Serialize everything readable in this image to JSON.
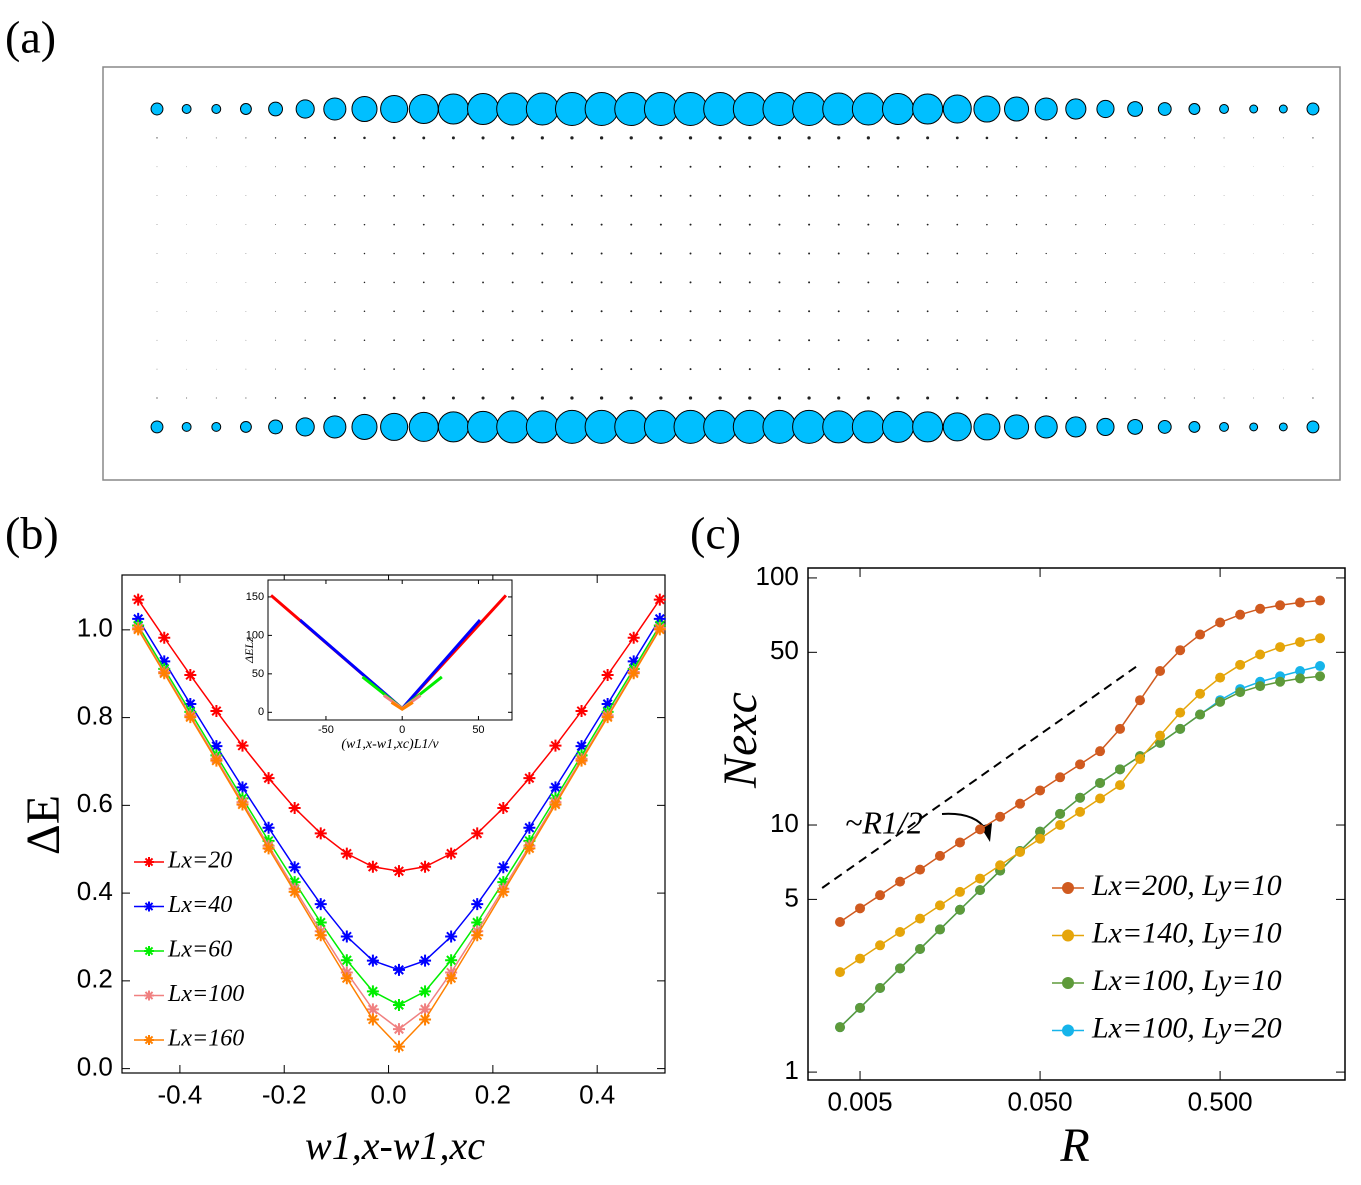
{
  "chart_data": [
    {
      "type": "lattice",
      "label": "(a)",
      "color": "#00bfff",
      "column_weights": [
        0.36,
        0.27,
        0.27,
        0.33,
        0.42,
        0.55,
        0.67,
        0.76,
        0.82,
        0.88,
        0.91,
        0.94,
        0.97,
        0.97,
        1,
        1,
        1,
        1,
        1,
        1,
        1,
        1,
        1,
        0.97,
        0.97,
        0.94,
        0.91,
        0.85,
        0.79,
        0.73,
        0.67,
        0.61,
        0.52,
        0.45,
        0.39,
        0.33,
        0.27,
        0.24,
        0.24,
        0.36
      ],
      "row_weights": [
        1,
        0.1,
        0.06,
        0.06,
        0.06,
        0.06,
        0.06,
        0.06,
        0.06,
        0.06,
        0.1,
        1
      ]
    },
    {
      "type": "line",
      "label": "(b)",
      "xlabel": "w1,x-w1,xc",
      "ylabel": "ΔE",
      "marker": "star",
      "legend": "lower left",
      "x": [
        -0.48,
        -0.43,
        -0.38,
        -0.33,
        -0.28,
        -0.23,
        -0.18,
        -0.13,
        -0.08,
        -0.03,
        0.02,
        0.07,
        0.12,
        0.17,
        0.22,
        0.27,
        0.32,
        0.37,
        0.42,
        0.47,
        0.52
      ],
      "xlim": [
        -0.511,
        0.53
      ],
      "ylim": [
        -0.01,
        1.125
      ],
      "xticks": [
        -0.4,
        -0.2,
        {
          "value": 0,
          "label": "0.0"
        },
        0.2,
        0.4
      ],
      "yticks": [
        {
          "value": 0,
          "label": "0.0"
        },
        0.2,
        0.4,
        0.6,
        0.8,
        {
          "value": 1,
          "label": "1.0"
        }
      ],
      "series": [
        {
          "name": "Lx=20",
          "color": "#ff0000",
          "values": [
            1.069,
            0.982,
            0.897,
            0.815,
            0.736,
            0.662,
            0.594,
            0.536,
            0.49,
            0.46,
            0.45,
            0.46,
            0.49,
            0.536,
            0.594,
            0.662,
            0.736,
            0.815,
            0.897,
            0.982,
            1.069
          ]
        },
        {
          "name": "Lx=40",
          "color": "#0000ff",
          "values": [
            1.025,
            0.928,
            0.831,
            0.735,
            0.641,
            0.549,
            0.459,
            0.375,
            0.301,
            0.246,
            0.225,
            0.246,
            0.301,
            0.375,
            0.459,
            0.549,
            0.641,
            0.735,
            0.831,
            0.928,
            1.025
          ]
        },
        {
          "name": "Lx=60",
          "color": "#00ee00",
          "values": [
            1.01,
            0.911,
            0.813,
            0.714,
            0.616,
            0.519,
            0.425,
            0.333,
            0.247,
            0.176,
            0.145,
            0.176,
            0.247,
            0.333,
            0.425,
            0.519,
            0.616,
            0.714,
            0.813,
            0.911,
            1.01
          ]
        },
        {
          "name": "Lx=100",
          "color": "#f08080",
          "values": [
            1.004,
            0.904,
            0.805,
            0.706,
            0.607,
            0.508,
            0.41,
            0.313,
            0.219,
            0.135,
            0.09,
            0.135,
            0.219,
            0.313,
            0.41,
            0.508,
            0.607,
            0.706,
            0.805,
            0.904,
            1.004
          ]
        },
        {
          "name": "Lx=160",
          "color": "#ff8000",
          "values": [
            1.001,
            0.901,
            0.801,
            0.702,
            0.602,
            0.502,
            0.403,
            0.304,
            0.206,
            0.112,
            0.05,
            0.112,
            0.206,
            0.304,
            0.403,
            0.502,
            0.602,
            0.702,
            0.801,
            0.901,
            1.001
          ]
        }
      ],
      "inset": {
        "type": "line",
        "xlabel": "(w1,x-w1,xc)L1/ν",
        "ylabel": "ΔELz",
        "xlim": [
          -88,
          72
        ],
        "ylim": [
          -10,
          172
        ],
        "xticks": [
          -50,
          0,
          50
        ],
        "yticks": [
          0,
          50,
          100,
          150
        ],
        "series": [
          {
            "color": "#ff0000",
            "x": [
              -86,
              0,
              68
            ],
            "values": [
              152,
              5,
              152
            ]
          },
          {
            "color": "#0000ff",
            "x": [
              -67,
              0,
              51
            ],
            "values": [
              120,
              5,
              120
            ]
          },
          {
            "color": "#00ee00",
            "x": [
              -26,
              0,
              26
            ],
            "values": [
              46,
              5,
              46
            ]
          },
          {
            "color": "#f08080",
            "x": [
              -12,
              0,
              12
            ],
            "values": [
              22,
              5,
              22
            ]
          },
          {
            "color": "#ff8000",
            "x": [
              -7,
              0,
              7
            ],
            "values": [
              13,
              4,
              13
            ]
          }
        ]
      }
    },
    {
      "type": "line",
      "label": "(c)",
      "xlabel": "R",
      "ylabel": "Nexc",
      "xscale": "log",
      "yscale": "log",
      "legend": "lower right",
      "x": [
        0.00387,
        0.005,
        0.00646,
        0.00834,
        0.01077,
        0.0139,
        0.01795,
        0.0232,
        0.03,
        0.0387,
        0.05,
        0.0646,
        0.0834,
        0.1077,
        0.139,
        0.1795,
        0.232,
        0.3,
        0.387,
        0.5,
        0.646,
        0.834,
        1.077,
        1.39,
        1.795
      ],
      "xlim": [
        0.00257,
        2.47
      ],
      "ylim": [
        0.929,
        109.7
      ],
      "xticks": [
        0.005,
        {
          "value": 0.05,
          "label": "0.050"
        },
        {
          "value": 0.5,
          "label": "0.500"
        }
      ],
      "yticks": [
        1,
        5,
        10,
        50,
        100
      ],
      "series": [
        {
          "name": "Lx=200, Ly=10",
          "color": "#d05a1f",
          "values": [
            4.05,
            4.6,
            5.2,
            5.9,
            6.6,
            7.5,
            8.5,
            9.6,
            10.8,
            12.2,
            13.8,
            15.6,
            17.6,
            19.9,
            24.5,
            32,
            42,
            51,
            59,
            66,
            71,
            75,
            77.5,
            79.5,
            81
          ]
        },
        {
          "name": "Lx=140, Ly=10",
          "color": "#e5a50a",
          "values": [
            2.54,
            2.88,
            3.26,
            3.69,
            4.18,
            4.73,
            5.36,
            6.07,
            6.87,
            7.78,
            8.8,
            10,
            11.3,
            12.8,
            14.5,
            18.5,
            23,
            28.5,
            34,
            39.5,
            44.5,
            49,
            52.5,
            55,
            57
          ]
        },
        {
          "name": "Lx=100, Ly=10",
          "color": "#5e9a3a",
          "values": [
            1.52,
            1.82,
            2.19,
            2.63,
            3.15,
            3.78,
            4.54,
            5.45,
            6.54,
            7.85,
            9.4,
            11.1,
            12.9,
            14.8,
            16.8,
            19,
            21.5,
            24.5,
            28,
            31.5,
            34.5,
            36.5,
            38,
            39.2,
            40
          ]
        },
        {
          "name": "Lx=100, Ly=20",
          "color": "#16b4ea",
          "values": [
            1.52,
            1.82,
            2.19,
            2.63,
            3.15,
            3.78,
            4.54,
            5.45,
            6.54,
            7.85,
            9.4,
            11.1,
            12.9,
            14.8,
            16.8,
            19,
            21.5,
            24.5,
            28,
            32,
            35.5,
            38,
            40,
            42,
            44
          ]
        }
      ],
      "guide": {
        "x": [
          0.00308,
          0.18
        ],
        "values": [
          5.56,
          44.9
        ]
      },
      "annotation": "~R1/2"
    }
  ]
}
